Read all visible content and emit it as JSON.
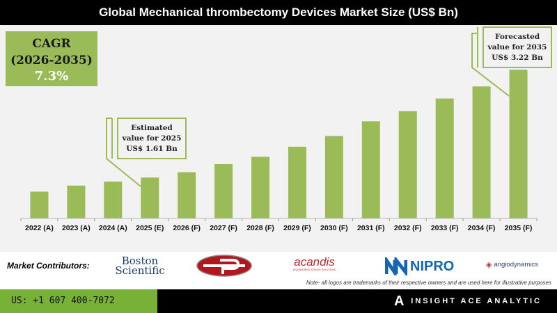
{
  "chart_data": {
    "type": "bar",
    "title": "Global Mechanical thrombectomy Devices Market Size (US$ Bn)",
    "categories": [
      "2022 (A)",
      "2023 (A)",
      "2024 (A)",
      "2025 (E)",
      "2026 (F)",
      "2027 (F)",
      "2028 (F)",
      "2029 (F)",
      "2030 (F)",
      "2031 (F)",
      "2032 (F)",
      "2033 (F)",
      "2034 (F)",
      "2035 (F)"
    ],
    "values": [
      1.4,
      1.49,
      1.55,
      1.61,
      1.69,
      1.81,
      1.92,
      2.07,
      2.23,
      2.45,
      2.6,
      2.79,
      2.97,
      3.22
    ],
    "bar_color": "#9bbb59",
    "grid": false,
    "ylim": [
      1.0,
      3.4
    ]
  },
  "cagr": {
    "label": "CAGR",
    "period": "(2026-2035)",
    "value": "7.3%"
  },
  "callouts": {
    "estimated": [
      "Estimated",
      "value for 2025",
      "US$ 1.61 Bn"
    ],
    "forecasted": [
      "Forecasted",
      "value for 2035",
      "US$ 3.22 Bn"
    ]
  },
  "contributors": {
    "label": "Market Contributors:",
    "logos": [
      "Boston Scientific",
      "Penumbra",
      "acandis",
      "NIPRO",
      "angiodynamics"
    ],
    "acandis_tagline": "ENGINEERING STROKE SOLUTIONS",
    "note": "Note- all logos are trademarks of their respective owners and are used here for illustrative purposes"
  },
  "footer": {
    "phone": "US: +1 607 400-7072",
    "brand": "INSIGHT ACE ANALYTIC"
  }
}
